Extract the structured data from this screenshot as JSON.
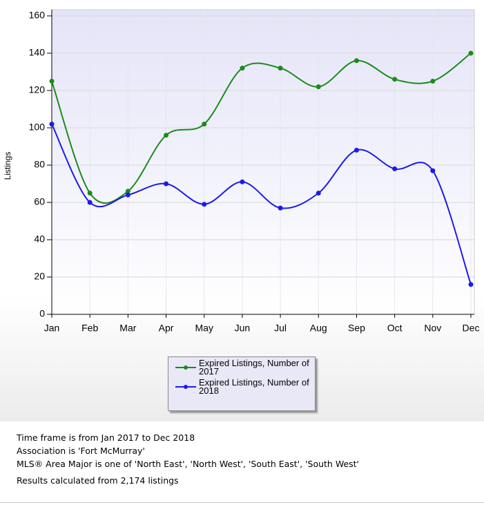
{
  "chart_data": {
    "type": "line",
    "y_label": "Listings",
    "categories": [
      "Jan",
      "Feb",
      "Mar",
      "Apr",
      "May",
      "Jun",
      "Jul",
      "Aug",
      "Sep",
      "Oct",
      "Nov",
      "Dec"
    ],
    "series": [
      {
        "name": "Expired Listings, Number of 2017",
        "color": "#1a8a1a",
        "values": [
          125,
          65,
          66,
          96,
          102,
          132,
          132,
          122,
          136,
          126,
          125,
          140
        ]
      },
      {
        "name": "Expired Listings, Number of 2018",
        "color": "#1a1aee",
        "values": [
          102,
          60,
          64,
          70,
          59,
          71,
          57,
          65,
          88,
          78,
          77,
          16
        ]
      }
    ],
    "ylim": [
      0,
      160
    ],
    "yticks": [
      0,
      20,
      40,
      60,
      80,
      100,
      120,
      140,
      160
    ],
    "grid": true,
    "smooth": true
  },
  "notes": [
    "Time frame is from Jan 2017 to Dec 2018",
    "Association is 'Fort McMurray'",
    "MLS® Area Major is one of 'North East', 'North West', 'South East', 'South West'",
    "Results calculated from 2,174 listings"
  ]
}
